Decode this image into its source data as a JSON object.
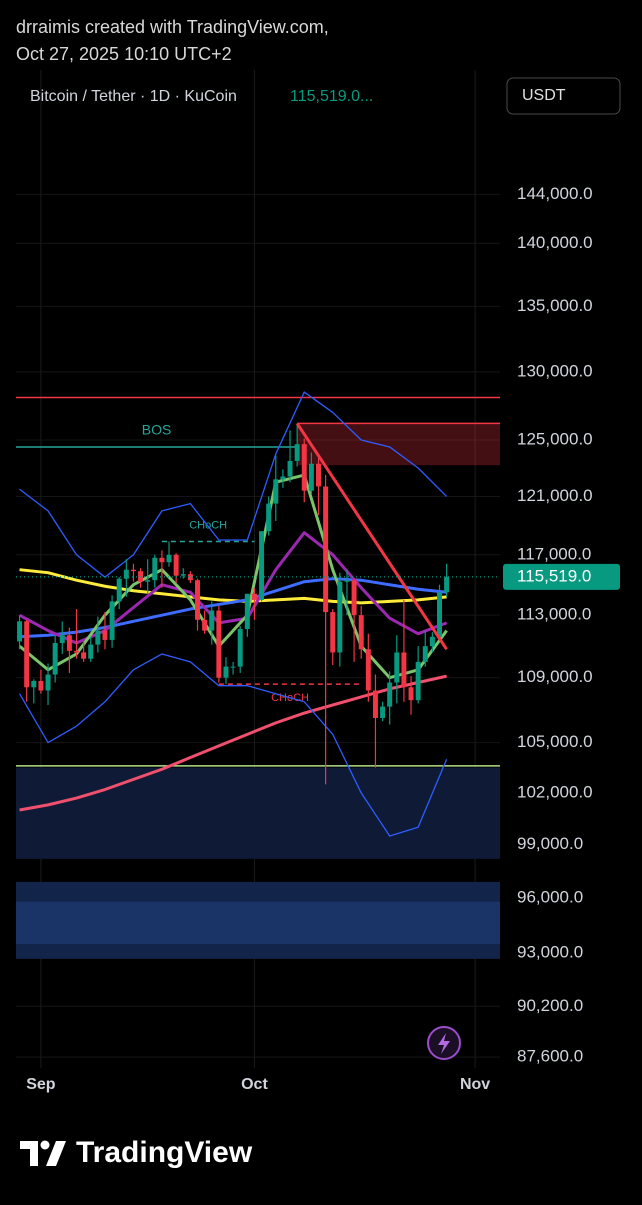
{
  "header": {
    "line1": "drraimis created with TradingView.com,",
    "line2": "Oct 27, 2025 10:10 UTC+2"
  },
  "legend": {
    "symbol": "Bitcoin / Tether · 1D · KuCoin",
    "price": "115,519.0..."
  },
  "currency_button": "USDT",
  "footer_brand": "TradingView",
  "chart_data": {
    "type": "candlestick",
    "log_scale": true,
    "grid": true,
    "up_color": "#089981",
    "down_color": "#f23645",
    "xlim": [
      -0.5,
      67.5
    ],
    "xticks": [
      {
        "value": 3,
        "label": "Sep"
      },
      {
        "value": 33,
        "label": "Oct"
      },
      {
        "value": 64,
        "label": "Nov"
      }
    ],
    "ylim": [
      87050,
      154700
    ],
    "yticks": [
      {
        "value": 144000,
        "label": "144,000.0"
      },
      {
        "value": 140000,
        "label": "140,000.0"
      },
      {
        "value": 135000,
        "label": "135,000.0"
      },
      {
        "value": 130000,
        "label": "130,000.0"
      },
      {
        "value": 125000,
        "label": "125,000.0"
      },
      {
        "value": 121000,
        "label": "121,000.0"
      },
      {
        "value": 117000,
        "label": "117,000.0"
      },
      {
        "value": 113000,
        "label": "113,000.0"
      },
      {
        "value": 109000,
        "label": "109,000.0"
      },
      {
        "value": 105000,
        "label": "105,000.0"
      },
      {
        "value": 102000,
        "label": "102,000.0"
      },
      {
        "value": 99000,
        "label": "99,000.0"
      },
      {
        "value": 96000,
        "label": "96,000.0"
      },
      {
        "value": 93000,
        "label": "93,000.0"
      },
      {
        "value": 90200,
        "label": "90,200.0"
      },
      {
        "value": 87600,
        "label": "87,600.0"
      }
    ],
    "candles": {
      "open": [
        111300,
        112600,
        108400,
        108800,
        108200,
        109200,
        111200,
        111700,
        110700,
        110600,
        110200,
        111100,
        112000,
        111400,
        113900,
        115400,
        116000,
        115900,
        115200,
        115300,
        116800,
        116500,
        117000,
        115600,
        115700,
        115300,
        112700,
        112000,
        113300,
        109000,
        109700,
        109700,
        112100,
        114400,
        114000,
        118600,
        120500,
        122200,
        122400,
        123500,
        124700,
        121400,
        123300,
        121700,
        113200,
        110600,
        115200,
        115300,
        113000,
        110800,
        108200,
        106500,
        107200,
        108700,
        110600,
        108400,
        107600,
        110000,
        111000,
        111600,
        114500
      ],
      "high": [
        113000,
        112700,
        108900,
        109500,
        109900,
        111700,
        112600,
        112200,
        113400,
        111300,
        111600,
        112900,
        113200,
        114300,
        115500,
        116700,
        116400,
        116100,
        116700,
        117000,
        117300,
        117900,
        117100,
        116100,
        115900,
        115400,
        113300,
        113900,
        113600,
        110300,
        110000,
        112300,
        114400,
        114800,
        118600,
        121000,
        123900,
        122900,
        125700,
        126200,
        125100,
        124100,
        123700,
        122500,
        113400,
        115800,
        116000,
        115400,
        113600,
        111800,
        109200,
        107500,
        109400,
        111700,
        114000,
        109100,
        111000,
        112000,
        111900,
        115000,
        116400
      ],
      "low": [
        110800,
        107500,
        107400,
        108000,
        107300,
        108700,
        110500,
        109300,
        110200,
        110000,
        110000,
        110600,
        110800,
        110900,
        113400,
        114200,
        115200,
        114800,
        114400,
        114800,
        114800,
        116200,
        115100,
        115400,
        115100,
        112000,
        111800,
        111100,
        108700,
        108600,
        109200,
        109300,
        111600,
        112700,
        113900,
        118300,
        119300,
        121600,
        122000,
        123100,
        120600,
        121100,
        119700,
        102500,
        109800,
        109700,
        113000,
        110000,
        110200,
        107500,
        103500,
        106300,
        106100,
        107400,
        107500,
        106700,
        107400,
        109700,
        110600,
        111400,
        114200
      ],
      "close": [
        112600,
        108400,
        108800,
        108200,
        109200,
        111200,
        111700,
        110700,
        110600,
        110200,
        111100,
        112000,
        111400,
        113900,
        115400,
        116000,
        115900,
        115200,
        115300,
        116800,
        116500,
        117000,
        115600,
        115700,
        115300,
        112700,
        112000,
        113300,
        109000,
        109700,
        109700,
        112100,
        114400,
        114000,
        118600,
        120500,
        122200,
        122400,
        123500,
        124700,
        121400,
        123300,
        121700,
        113200,
        110600,
        115200,
        115300,
        113000,
        110800,
        108200,
        106500,
        107200,
        108700,
        110600,
        108400,
        107600,
        110000,
        111000,
        111600,
        114500,
        115519
      ]
    },
    "lines": [
      {
        "color": "#f0506e",
        "x": [
          0,
          4,
          8,
          12,
          16,
          20,
          24,
          28,
          32,
          36,
          40,
          44,
          48,
          52,
          56,
          60
        ],
        "values": [
          101000,
          101300,
          101700,
          102200,
          102800,
          103400,
          104100,
          104800,
          105500,
          106200,
          106800,
          107300,
          107800,
          108300,
          108700,
          109100
        ]
      },
      {
        "color": "#ffeb3b",
        "x": [
          0,
          4,
          8,
          12,
          16,
          20,
          24,
          28,
          32,
          36,
          40,
          44,
          48,
          52,
          56,
          60
        ],
        "values": [
          116000,
          115800,
          115300,
          114900,
          114600,
          114400,
          114200,
          114000,
          113900,
          114000,
          114100,
          113900,
          113800,
          113900,
          114000,
          114200
        ]
      },
      {
        "color": "#3d6cff",
        "x": [
          0,
          4,
          8,
          12,
          16,
          20,
          24,
          28,
          32,
          36,
          40,
          44,
          48,
          52,
          56,
          60
        ],
        "values": [
          111600,
          111700,
          111900,
          112200,
          112600,
          113000,
          113400,
          113700,
          114000,
          114600,
          115200,
          115400,
          115300,
          115000,
          114700,
          114500
        ]
      },
      {
        "color": "#9c27b0",
        "x": [
          0,
          4,
          8,
          12,
          16,
          20,
          24,
          28,
          32,
          36,
          40,
          44,
          48,
          52,
          56,
          60
        ],
        "values": [
          113000,
          112000,
          111200,
          112000,
          113500,
          115000,
          114500,
          112500,
          112800,
          116000,
          118500,
          117000,
          114800,
          112800,
          111800,
          112500
        ]
      },
      {
        "color": "#7cc46b",
        "x": [
          0,
          4,
          8,
          12,
          16,
          20,
          24,
          28,
          32,
          36,
          40,
          44,
          48,
          52,
          56,
          60
        ],
        "values": [
          111000,
          109500,
          110500,
          113000,
          115000,
          116000,
          114000,
          111000,
          113000,
          122000,
          122500,
          116000,
          111000,
          109000,
          109500,
          112000
        ]
      },
      {
        "color": "#2f5cff",
        "thin": true,
        "x": [
          0,
          4,
          8,
          12,
          16,
          20,
          24,
          28,
          32,
          36,
          40,
          44,
          48,
          52,
          56,
          60
        ],
        "values": [
          121500,
          120000,
          117000,
          115500,
          117000,
          120000,
          120500,
          118000,
          118000,
          124000,
          128500,
          127000,
          125000,
          124500,
          123000,
          121000
        ]
      },
      {
        "color": "#2f5cff",
        "thin": true,
        "x": [
          0,
          4,
          8,
          12,
          16,
          20,
          24,
          28,
          32,
          36,
          40,
          44,
          48,
          52,
          56,
          60
        ],
        "values": [
          108000,
          105000,
          106000,
          107500,
          109500,
          110500,
          110000,
          108500,
          108500,
          108000,
          107500,
          105500,
          102000,
          99500,
          100000,
          104000
        ]
      }
    ],
    "zones": [
      {
        "top": 126200,
        "bottom": 123200,
        "x": [
          39,
          67.5
        ],
        "color": "rgba(242,54,69,0.28)",
        "edge": "#f23645"
      },
      {
        "top": 103500,
        "bottom": 98200,
        "x": [
          -0.5,
          67.5
        ],
        "color": "#0f1b36"
      },
      {
        "top": 96900,
        "bottom": 92700,
        "x": [
          -0.5,
          67.5
        ],
        "color": "#13244a"
      },
      {
        "top": 95800,
        "bottom": 93500,
        "x": [
          -0.5,
          67.5
        ],
        "color": "#1b3468"
      }
    ],
    "levels": [
      {
        "value": 128100,
        "x": [
          -0.5,
          67.5
        ],
        "color": "#f23645"
      },
      {
        "value": 124500,
        "x": [
          -0.5,
          39
        ],
        "color": "#26a69a",
        "label": "BOS",
        "label_side": "above"
      },
      {
        "value": 103600,
        "x": [
          -0.5,
          67.5
        ],
        "color": "#b2e08a"
      },
      {
        "value": 117900,
        "x": [
          20,
          33
        ],
        "color": "#26a69a",
        "dashed": true,
        "label": "CHoCH",
        "label_side": "above"
      },
      {
        "value": 108600,
        "x": [
          28,
          48
        ],
        "color": "#f23645",
        "dashed": true,
        "label": "CHoCH",
        "label_side": "below"
      }
    ],
    "trend_line": {
      "color": "#f23645",
      "x": [
        39,
        60
      ],
      "values": [
        126200,
        110800
      ]
    },
    "last_price": {
      "value": 115519,
      "label": "115,519.0",
      "color": "#089981"
    }
  }
}
